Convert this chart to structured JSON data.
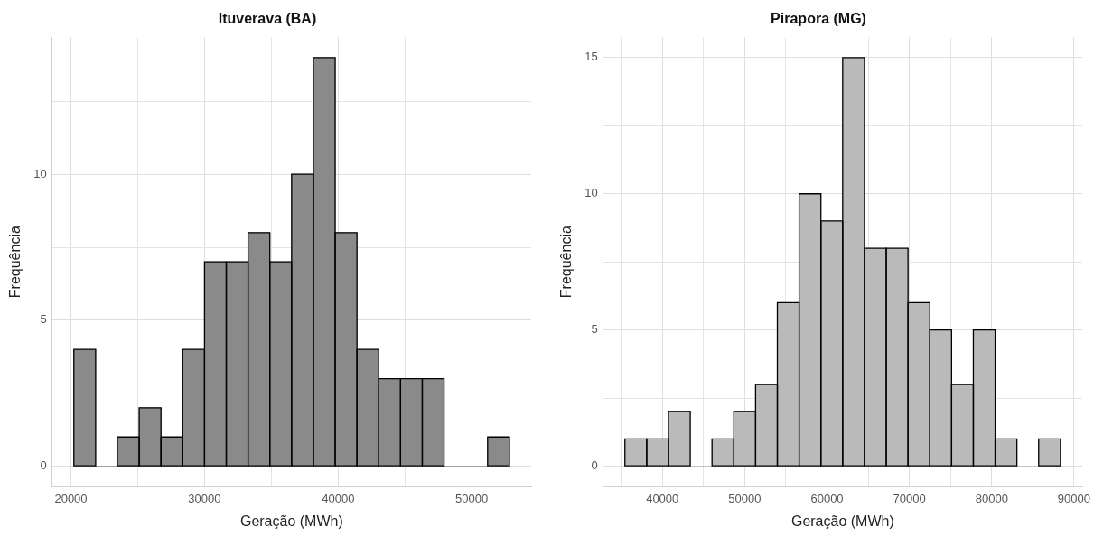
{
  "chart_data": [
    {
      "type": "histogram",
      "title": "Ituverava (BA)",
      "xlabel": "Geração (MWh)",
      "ylabel": "Frequência",
      "color": "#8a8a8a",
      "bins": [
        20220,
        21850,
        23480,
        25110,
        26740,
        28370,
        30000,
        31630,
        33260,
        34890,
        36520,
        38150,
        39780,
        41410,
        43040,
        44670,
        46300,
        47930,
        49560,
        51190,
        52820
      ],
      "values": [
        4,
        0,
        1,
        2,
        1,
        4,
        7,
        7,
        8,
        7,
        10,
        14,
        8,
        4,
        3,
        3,
        3,
        0,
        0,
        1
      ],
      "xlim": [
        18590,
        54450
      ],
      "xticks": [
        20000,
        {
          "value": 25000,
          "label": null
        },
        30000,
        {
          "value": 35000,
          "label": null
        },
        40000,
        {
          "value": 45000,
          "label": null
        },
        50000
      ],
      "ylim": [
        -0.7,
        14.7
      ],
      "yticks": [
        0,
        {
          "value": 2.5,
          "label": null
        },
        5,
        {
          "value": 7.5,
          "label": null
        },
        10,
        {
          "value": 12.5,
          "label": null
        }
      ],
      "grid": true,
      "legend": false
    },
    {
      "type": "histogram",
      "title": "Pirapora (MG)",
      "xlabel": "Geração (MWh)",
      "ylabel": "Frequência",
      "color": "#bababa",
      "bins": [
        35450,
        38095,
        40740,
        43385,
        46030,
        48675,
        51320,
        53965,
        56610,
        59255,
        61900,
        64545,
        67190,
        69835,
        72480,
        75125,
        77770,
        80415,
        83060,
        85705,
        88350
      ],
      "values": [
        1,
        1,
        2,
        0,
        1,
        2,
        3,
        6,
        10,
        9,
        15,
        8,
        8,
        6,
        5,
        3,
        5,
        1,
        0,
        1
      ],
      "xlim": [
        32805,
        90995
      ],
      "xticks": [
        {
          "value": 35000,
          "label": null
        },
        40000,
        {
          "value": 45000,
          "label": null
        },
        50000,
        {
          "value": 55000,
          "label": null
        },
        60000,
        {
          "value": 65000,
          "label": null
        },
        70000,
        {
          "value": 75000,
          "label": null
        },
        80000,
        {
          "value": 85000,
          "label": null
        },
        90000
      ],
      "ylim": [
        -0.75,
        15.75
      ],
      "yticks": [
        0,
        {
          "value": 2.5,
          "label": null
        },
        5,
        {
          "value": 7.5,
          "label": null
        },
        10,
        {
          "value": 12.5,
          "label": null
        },
        15
      ],
      "grid": true,
      "legend": false
    }
  ]
}
